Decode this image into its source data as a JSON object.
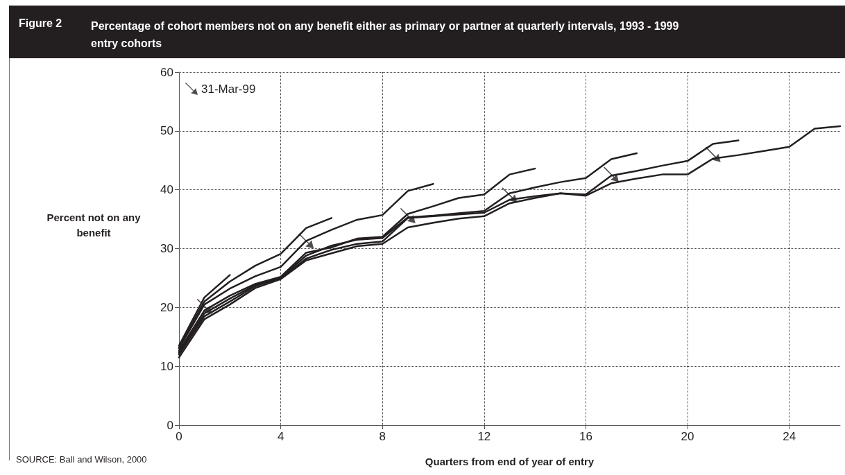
{
  "chart_data": {
    "type": "line",
    "title": "Percentage of cohort members not on any benefit either as primary or partner at quarterly intervals, 1993 - 1999 entry cohorts",
    "xlabel": "Quarters from end of year of entry",
    "ylabel": "Percent not on any benefit",
    "annotations": [
      "Figure 2",
      "SOURCE: Ball and Wilson, 2000"
    ],
    "xlim": [
      0,
      26
    ],
    "xticks": [
      0,
      4,
      8,
      12,
      16,
      20,
      24
    ],
    "ylim": [
      0,
      60
    ],
    "yticks": [
      0,
      10,
      20,
      30,
      40,
      50,
      60
    ],
    "grid": true,
    "legend": "top left",
    "marker": "none",
    "line_style": "solid",
    "series": [
      {
        "color": "#231f20",
        "x": [
          0,
          1,
          2,
          3,
          4,
          5,
          6,
          7,
          8,
          9,
          10,
          11,
          12,
          13,
          14,
          15,
          16,
          17,
          18,
          19,
          20,
          21,
          22,
          23,
          24,
          25,
          26
        ],
        "values": [
          11.5,
          18,
          20.5,
          23.3,
          24.8,
          28,
          29.2,
          30.4,
          30.8,
          33.6,
          34.4,
          35.1,
          35.5,
          37.7,
          38.6,
          39.4,
          39,
          41.1,
          41.9,
          42.6,
          42.6,
          45.3,
          45.9,
          46.6,
          47.3,
          50.4,
          50.8
        ]
      },
      {
        "color": "#231f20",
        "x": [
          0,
          1,
          2,
          3,
          4,
          5,
          6,
          7,
          8,
          9,
          10,
          11,
          12,
          13,
          14,
          15,
          16,
          17,
          18,
          19,
          20,
          21,
          22
        ],
        "values": [
          12,
          18.5,
          21,
          23.6,
          25,
          28.3,
          29.8,
          30.8,
          31.2,
          35.2,
          35.5,
          35.8,
          36.1,
          38.3,
          38.9,
          39.4,
          39.2,
          42.4,
          43.2,
          44.1,
          44.9,
          47.8,
          48.4
        ]
      },
      {
        "color": "#231f20",
        "x": [
          0,
          1,
          2,
          3,
          4,
          5,
          6,
          7,
          8,
          9,
          10,
          11,
          12,
          13,
          14,
          15,
          16,
          17,
          18
        ],
        "values": [
          12.3,
          19,
          21.5,
          23.8,
          25.1,
          28.8,
          30.5,
          31.5,
          31.8,
          35.3,
          35.6,
          36,
          36.4,
          39.4,
          40.4,
          41.3,
          42,
          45.2,
          46.2
        ]
      },
      {
        "color": "#231f20",
        "x": [
          0,
          1,
          2,
          3,
          4,
          5,
          6,
          7,
          8,
          9,
          10,
          11,
          12,
          13,
          14
        ],
        "values": [
          12.6,
          19.5,
          22,
          24,
          25.2,
          29.3,
          30.2,
          31.7,
          32,
          35.9,
          37.2,
          38.6,
          39.2,
          42.6,
          43.6
        ]
      },
      {
        "color": "#231f20",
        "x": [
          0,
          1,
          2,
          3,
          4,
          5,
          6,
          7,
          8,
          9,
          10
        ],
        "values": [
          13,
          20.5,
          23.2,
          25.3,
          26.9,
          31.3,
          33.2,
          34.9,
          35.7,
          39.8,
          41
        ]
      },
      {
        "color": "#231f20",
        "x": [
          0,
          1,
          2,
          3,
          4,
          5,
          6
        ],
        "values": [
          13.2,
          21,
          24.4,
          27.1,
          29.1,
          33.5,
          35.2
        ]
      },
      {
        "color": "#231f20",
        "x": [
          0,
          1,
          2
        ],
        "values": [
          13.5,
          21.7,
          25.5
        ]
      },
      {
        "name": "31-Mar-99",
        "type": "scatter",
        "color": "#231f20",
        "x": [
          1,
          5,
          9,
          13,
          17,
          21
        ],
        "values": [
          20.2,
          31.3,
          35.6,
          39.1,
          42.6,
          46
        ]
      }
    ]
  }
}
